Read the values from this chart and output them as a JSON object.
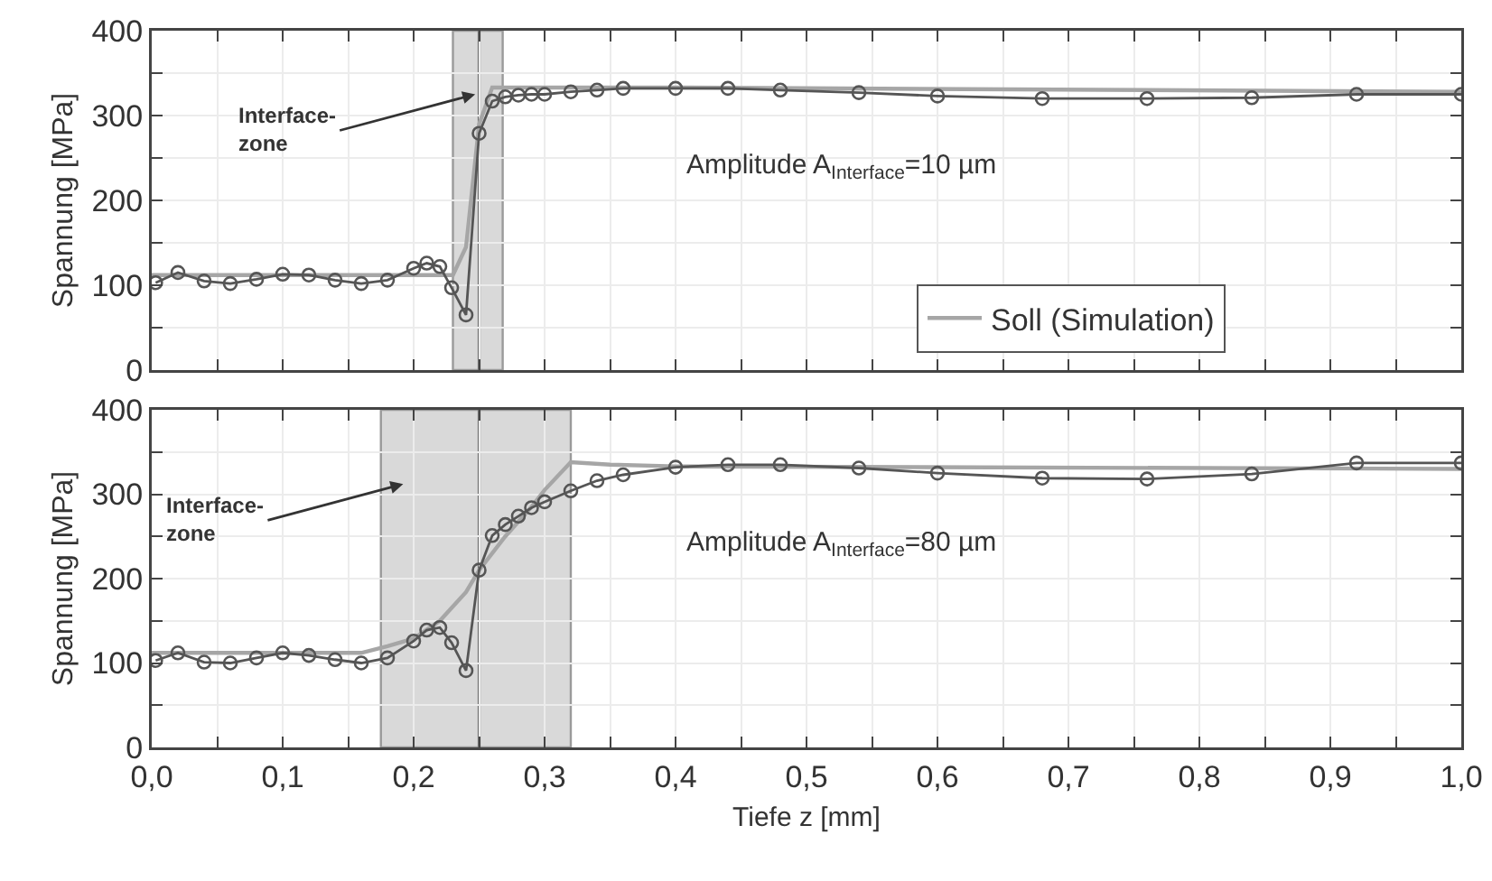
{
  "chart_data": [
    {
      "type": "line",
      "xlim": [
        0,
        1
      ],
      "ylim": [
        0,
        400
      ],
      "xticks": [
        {
          "value": 0,
          "label": null
        },
        {
          "value": 0.05,
          "label": null
        },
        {
          "value": 0.1,
          "label": null
        },
        {
          "value": 0.15,
          "label": null
        },
        {
          "value": 0.2,
          "label": null
        },
        {
          "value": 0.25,
          "label": null
        },
        {
          "value": 0.3,
          "label": null
        },
        {
          "value": 0.35,
          "label": null
        },
        {
          "value": 0.4,
          "label": null
        },
        {
          "value": 0.45,
          "label": null
        },
        {
          "value": 0.5,
          "label": null
        },
        {
          "value": 0.55,
          "label": null
        },
        {
          "value": 0.6,
          "label": null
        },
        {
          "value": 0.65,
          "label": null
        },
        {
          "value": 0.7,
          "label": null
        },
        {
          "value": 0.75,
          "label": null
        },
        {
          "value": 0.8,
          "label": null
        },
        {
          "value": 0.85,
          "label": null
        },
        {
          "value": 0.9,
          "label": null
        },
        {
          "value": 0.95,
          "label": null
        },
        {
          "value": 1,
          "label": null
        }
      ],
      "yticks": [
        0,
        {
          "value": 50,
          "label": null
        },
        100,
        {
          "value": 150,
          "label": null
        },
        200,
        {
          "value": 250,
          "label": null
        },
        300,
        {
          "value": 350,
          "label": null
        },
        400
      ],
      "ylabel": "Spannung [MPa]",
      "tick_labels": "y",
      "grid": true,
      "legend": "bottom right",
      "line_style": "solid",
      "bands": [
        {
          "axis": "x",
          "from": 0.23,
          "to": 0.268,
          "color": "#d9d9d9"
        }
      ],
      "ref_lines": [
        {
          "axis": "x",
          "value": 0.25,
          "color": "#707070"
        }
      ],
      "annotations": [
        {
          "text": "Interface-\nzone",
          "x": 0.247,
          "y": 325
        },
        "Amplitude A$_{Interface}$=10 µm"
      ],
      "series": [
        {
          "name": "Soll (Simulation)",
          "color": "#a6a6a6",
          "marker": "none",
          "x": [
            0,
            0.23,
            0.24,
            0.25,
            0.26,
            0.4,
            1.0
          ],
          "values": [
            112,
            112,
            145,
            290,
            333,
            333,
            328
          ]
        },
        {
          "color": "#555555",
          "marker": "circle",
          "x": [
            0.003,
            0.02,
            0.04,
            0.06,
            0.08,
            0.1,
            0.12,
            0.14,
            0.16,
            0.18,
            0.2,
            0.21,
            0.22,
            0.229,
            0.24,
            0.25,
            0.26,
            0.27,
            0.28,
            0.29,
            0.3,
            0.32,
            0.34,
            0.36,
            0.4,
            0.44,
            0.48,
            0.54,
            0.6,
            0.68,
            0.76,
            0.84,
            0.92,
            1.0
          ],
          "values": [
            103,
            115,
            105,
            102,
            107,
            113,
            112,
            106,
            102,
            106,
            120,
            126,
            122,
            97,
            65,
            279,
            317,
            322,
            324,
            325,
            325,
            328,
            330,
            332,
            332,
            332,
            330,
            327,
            323,
            320,
            320,
            321,
            325,
            325
          ]
        }
      ]
    },
    {
      "type": "line",
      "xlim": [
        0,
        1
      ],
      "ylim": [
        0,
        400
      ],
      "xticks": [
        {
          "value": 0,
          "label": "0,0"
        },
        {
          "value": 0.05,
          "label": null
        },
        {
          "value": 0.1,
          "label": "0,1"
        },
        {
          "value": 0.15,
          "label": null
        },
        {
          "value": 0.2,
          "label": "0,2"
        },
        {
          "value": 0.25,
          "label": null
        },
        {
          "value": 0.3,
          "label": "0,3"
        },
        {
          "value": 0.35,
          "label": null
        },
        {
          "value": 0.4,
          "label": "0,4"
        },
        {
          "value": 0.45,
          "label": null
        },
        {
          "value": 0.5,
          "label": "0,5"
        },
        {
          "value": 0.55,
          "label": null
        },
        {
          "value": 0.6,
          "label": "0,6"
        },
        {
          "value": 0.65,
          "label": null
        },
        {
          "value": 0.7,
          "label": "0,7"
        },
        {
          "value": 0.75,
          "label": null
        },
        {
          "value": 0.8,
          "label": "0,8"
        },
        {
          "value": 0.85,
          "label": null
        },
        {
          "value": 0.9,
          "label": "0,9"
        },
        {
          "value": 0.95,
          "label": null
        },
        {
          "value": 1,
          "label": "1,0"
        }
      ],
      "yticks": [
        0,
        {
          "value": 50,
          "label": null
        },
        100,
        {
          "value": 150,
          "label": null
        },
        200,
        {
          "value": 250,
          "label": null
        },
        300,
        {
          "value": 350,
          "label": null
        },
        400
      ],
      "xlabel": "Tiefe z [mm]",
      "ylabel": "Spannung [MPa]",
      "grid": true,
      "line_style": "solid",
      "bands": [
        {
          "axis": "x",
          "from": 0.175,
          "to": 0.32,
          "color": "#d9d9d9"
        }
      ],
      "ref_lines": [
        {
          "axis": "x",
          "value": 0.25,
          "color": "#707070"
        }
      ],
      "annotations": [
        "Interface-\nzone",
        "Amplitude A$_{Interface}$=80 µm"
      ],
      "series": [
        {
          "color": "#a6a6a6",
          "marker": "none",
          "x": [
            0,
            0.16,
            0.18,
            0.2,
            0.22,
            0.24,
            0.25,
            0.27,
            0.29,
            0.3,
            0.32,
            0.35,
            0.4,
            1.0
          ],
          "values": [
            112,
            112,
            120,
            129,
            150,
            184,
            210,
            250,
            285,
            305,
            338,
            335,
            333,
            330
          ]
        },
        {
          "color": "#555555",
          "marker": "circle",
          "x": [
            0.003,
            0.02,
            0.04,
            0.06,
            0.08,
            0.1,
            0.12,
            0.14,
            0.16,
            0.18,
            0.2,
            0.21,
            0.22,
            0.229,
            0.24,
            0.25,
            0.26,
            0.27,
            0.28,
            0.29,
            0.3,
            0.32,
            0.34,
            0.36,
            0.4,
            0.44,
            0.48,
            0.54,
            0.6,
            0.68,
            0.76,
            0.84,
            0.92,
            1.0
          ],
          "values": [
            103,
            112,
            101,
            100,
            106,
            112,
            109,
            104,
            100,
            106,
            126,
            139,
            142,
            124,
            91,
            210,
            251,
            264,
            274,
            284,
            291,
            304,
            316,
            323,
            332,
            335,
            335,
            331,
            325,
            319,
            318,
            324,
            337,
            337
          ]
        }
      ]
    }
  ]
}
